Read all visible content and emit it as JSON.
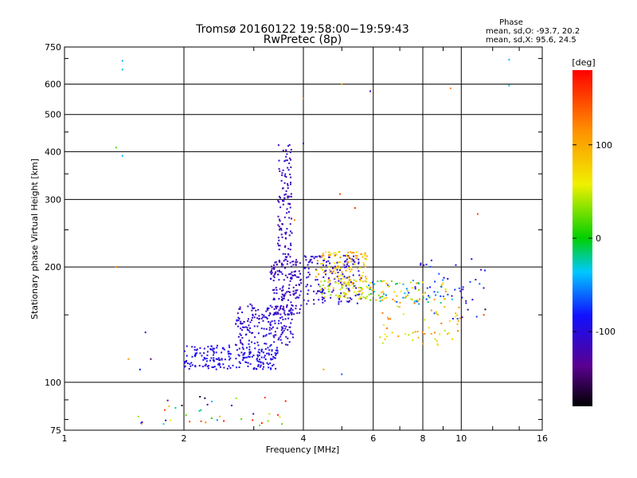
{
  "chart_data": {
    "type": "scatter",
    "title": "Tromsø 20160122 19:58:00−19:59:43",
    "subtitle": "RwPretec (8p)",
    "xlabel": "Frequency [MHz]",
    "ylabel": "Stationary phase Virtual Height [km]",
    "x_scale": "log",
    "y_scale": "log",
    "xlim": [
      1,
      16
    ],
    "ylim": [
      75,
      750
    ],
    "x_ticks": [
      1,
      2,
      4,
      6,
      8,
      10,
      16
    ],
    "y_ticks": [
      75,
      100,
      200,
      300,
      400,
      500,
      600,
      750
    ],
    "grid": true,
    "stats": {
      "heading": "Phase",
      "o_line": "mean, sd,O:  -93.7, 20.2",
      "x_line": "mean, sd,X:  95.6, 24.5"
    },
    "colorbar": {
      "label": "[deg]",
      "range": [
        -180,
        180
      ],
      "ticks": [
        {
          "value": 100,
          "label": "100"
        },
        {
          "value": 0,
          "label": "0"
        },
        {
          "value": -100,
          "label": "-100"
        }
      ]
    },
    "clusters": [
      {
        "f": [
          2.0,
          3.45
        ],
        "h": [
          108,
          125
        ],
        "phase": [
          -110,
          -80
        ],
        "n": 220
      },
      {
        "f": [
          2.7,
          3.8
        ],
        "h": [
          125,
          160
        ],
        "phase": [
          -120,
          -90
        ],
        "n": 180
      },
      {
        "f": [
          3.3,
          3.95
        ],
        "h": [
          150,
          210
        ],
        "phase": [
          -125,
          -100
        ],
        "n": 170
      },
      {
        "f": [
          3.45,
          3.75
        ],
        "h": [
          210,
          420
        ],
        "phase": [
          -125,
          -100
        ],
        "n": 110
      },
      {
        "f": [
          4.0,
          5.6
        ],
        "h": [
          160,
          215
        ],
        "phase": [
          -120,
          -95
        ],
        "n": 160
      },
      {
        "f": [
          4.3,
          5.8
        ],
        "h": [
          180,
          220
        ],
        "phase": [
          60,
          120
        ],
        "n": 110
      },
      {
        "f": [
          4.4,
          6.0
        ],
        "h": [
          165,
          185
        ],
        "phase": [
          20,
          90
        ],
        "n": 70
      },
      {
        "f": [
          5.8,
          9.5
        ],
        "h": [
          160,
          185
        ],
        "phase": [
          -90,
          120
        ],
        "n": 90
      },
      {
        "f": [
          6.0,
          10.0
        ],
        "h": [
          125,
          165
        ],
        "phase": [
          40,
          130
        ],
        "n": 60
      },
      {
        "f": [
          7.5,
          11.5
        ],
        "h": [
          145,
          210
        ],
        "phase": [
          -125,
          -60
        ],
        "n": 40
      },
      {
        "f": [
          1.5,
          3.7
        ],
        "h": [
          77,
          92
        ],
        "phase": [
          -180,
          180
        ],
        "n": 40
      }
    ],
    "points": [
      {
        "f": 1.4,
        "h": 690,
        "phase": -40
      },
      {
        "f": 1.4,
        "h": 655,
        "phase": -30
      },
      {
        "f": 1.35,
        "h": 410,
        "phase": 20
      },
      {
        "f": 1.4,
        "h": 390,
        "phase": -40
      },
      {
        "f": 1.45,
        "h": 115,
        "phase": 110
      },
      {
        "f": 1.55,
        "h": 108,
        "phase": -80
      },
      {
        "f": 1.65,
        "h": 115,
        "phase": -140
      },
      {
        "f": 1.6,
        "h": 135,
        "phase": -120
      },
      {
        "f": 4.0,
        "h": 550,
        "phase": 120
      },
      {
        "f": 4.0,
        "h": 420,
        "phase": -110
      },
      {
        "f": 5.0,
        "h": 600,
        "phase": 110
      },
      {
        "f": 5.9,
        "h": 575,
        "phase": -120
      },
      {
        "f": 9.4,
        "h": 585,
        "phase": 120
      },
      {
        "f": 13.2,
        "h": 695,
        "phase": -40
      },
      {
        "f": 13.2,
        "h": 595,
        "phase": -40
      },
      {
        "f": 11.0,
        "h": 275,
        "phase": 150
      },
      {
        "f": 5.4,
        "h": 285,
        "phase": 160
      },
      {
        "f": 4.95,
        "h": 310,
        "phase": 150
      },
      {
        "f": 3.8,
        "h": 265,
        "phase": 120
      },
      {
        "f": 5.0,
        "h": 105,
        "phase": -60
      },
      {
        "f": 4.5,
        "h": 108,
        "phase": 110
      },
      {
        "f": 1.35,
        "h": 200,
        "phase": 120
      },
      {
        "f": 11.5,
        "h": 155,
        "phase": -160
      },
      {
        "f": 11.4,
        "h": 150,
        "phase": 150
      }
    ]
  }
}
